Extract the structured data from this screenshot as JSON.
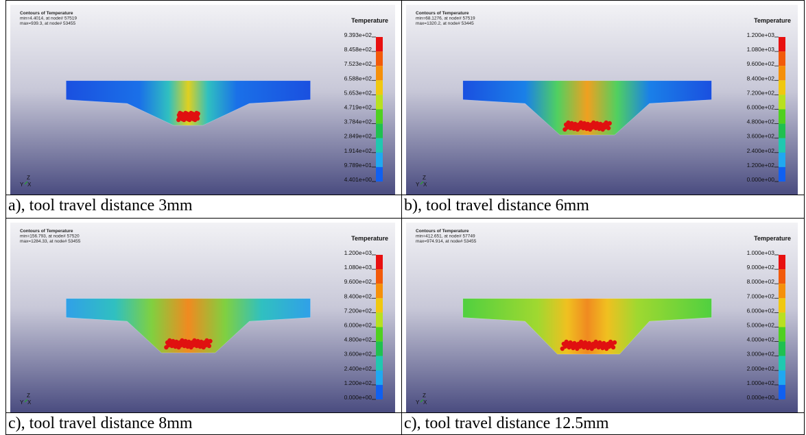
{
  "panels": [
    {
      "header": [
        "Contours of Temperature",
        "min=4.4014, at node# 57519",
        "max=939.3, at node# 53455"
      ],
      "legend_title": "Temperature",
      "legend_labels": [
        "9.393e+02",
        "8.458e+02",
        "7.523e+02",
        "6.588e+02",
        "5.653e+02",
        "4.719e+02",
        "3.784e+02",
        "2.849e+02",
        "1.914e+02",
        "9.789e+01",
        "4.401e+00"
      ],
      "axes": [
        "Z",
        "Y",
        "X"
      ],
      "caption": "a), tool travel distance 3mm"
    },
    {
      "header": [
        "Contours of Temperature",
        "min=68.1276, at node# 57519",
        "max=1320.2, at node# 53445"
      ],
      "legend_title": "Temperature",
      "legend_labels": [
        "1.200e+03",
        "1.080e+03",
        "9.600e+02",
        "8.400e+02",
        "7.200e+02",
        "6.000e+02",
        "4.800e+02",
        "3.600e+02",
        "2.400e+02",
        "1.200e+02",
        "0.000e+00"
      ],
      "axes": [
        "Z",
        "Y",
        "X"
      ],
      "caption": "b), tool travel distance 6mm"
    },
    {
      "header": [
        "Contours of Temperature",
        "min=156.793, at node# 57520",
        "max=1284.33, at node# 53455"
      ],
      "legend_title": "Temperature",
      "legend_labels": [
        "1.200e+03",
        "1.080e+03",
        "9.600e+02",
        "8.400e+02",
        "7.200e+02",
        "6.000e+02",
        "4.800e+02",
        "3.600e+02",
        "2.400e+02",
        "1.200e+02",
        "0.000e+00"
      ],
      "axes": [
        "Z",
        "Y",
        "X"
      ],
      "caption": "c), tool travel distance 8mm"
    },
    {
      "header": [
        "Contours of Temperature",
        "min=412.651, at node# 57749",
        "max=974.914, at node# 53455"
      ],
      "legend_title": "Temperature",
      "legend_labels": [
        "1.000e+03",
        "9.000e+02",
        "8.000e+02",
        "7.000e+02",
        "6.000e+02",
        "5.000e+02",
        "4.000e+02",
        "3.000e+02",
        "2.000e+02",
        "1.000e+02",
        "0.000e+00"
      ],
      "axes": [
        "Z",
        "Y",
        "X"
      ],
      "caption": "c), tool travel distance 12.5mm"
    }
  ]
}
